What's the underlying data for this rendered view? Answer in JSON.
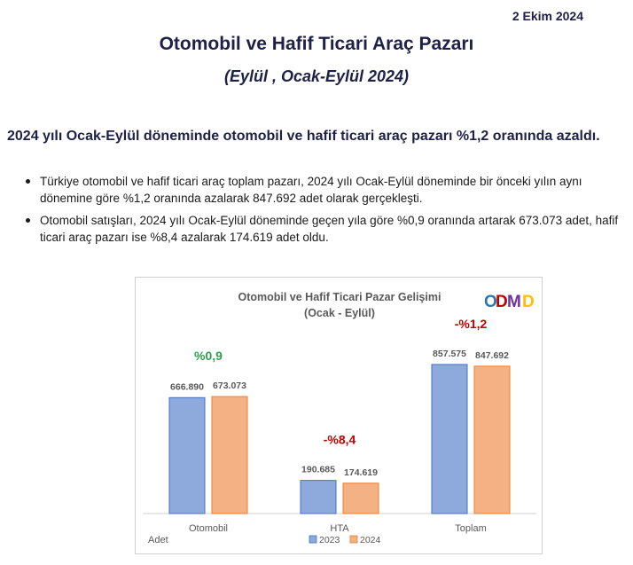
{
  "header": {
    "date": "2 Ekim 2024",
    "title": "Otomobil ve Hafif Ticari Araç Pazarı",
    "subtitle": "(Eylül , Ocak-Eylül  2024)"
  },
  "summary": {
    "headline": "2024 yılı Ocak-Eylül döneminde otomobil ve hafif ticari araç pazarı %1,2 oranında azaldı.",
    "bullets": [
      "Türkiye otomobil ve hafif ticari araç toplam pazarı, 2024 yılı Ocak-Eylül döneminde bir önceki yılın aynı dönemine göre %1,2 oranında azalarak 847.692 adet olarak gerçekleşti.",
      "Otomobil satışları, 2024 yılı Ocak-Eylül döneminde geçen yıla göre %0,9 oranında artarak 673.073 adet, hafif ticari araç pazarı ise %8,4 azalarak 174.619 adet oldu."
    ]
  },
  "chart_data": {
    "type": "bar",
    "title": "Otomobil ve Hafif Ticari Pazar Gelişimi",
    "subtitle": "(Ocak - Eylül)",
    "ylabel": "Adet",
    "logo_text": "ODMD",
    "categories": [
      "Otomobil",
      "HTA",
      "Toplam"
    ],
    "series": [
      {
        "name": "2023",
        "values": [
          666890,
          190685,
          857575
        ],
        "labels": [
          "666.890",
          "190.685",
          "857.575"
        ],
        "color": "#8ea9db"
      },
      {
        "name": "2024",
        "values": [
          673073,
          174619,
          847692
        ],
        "labels": [
          "673.073",
          "174.619",
          "847.692"
        ],
        "color": "#f4b183"
      }
    ],
    "changes": [
      {
        "label": "%0,9",
        "color": "#2e9e4f"
      },
      {
        "label": "-%8,4",
        "color": "#c00000"
      },
      {
        "label": "-%1,2",
        "color": "#c00000"
      }
    ],
    "ylim": [
      0,
      1000000
    ],
    "legend": "bottom",
    "grid": false
  }
}
